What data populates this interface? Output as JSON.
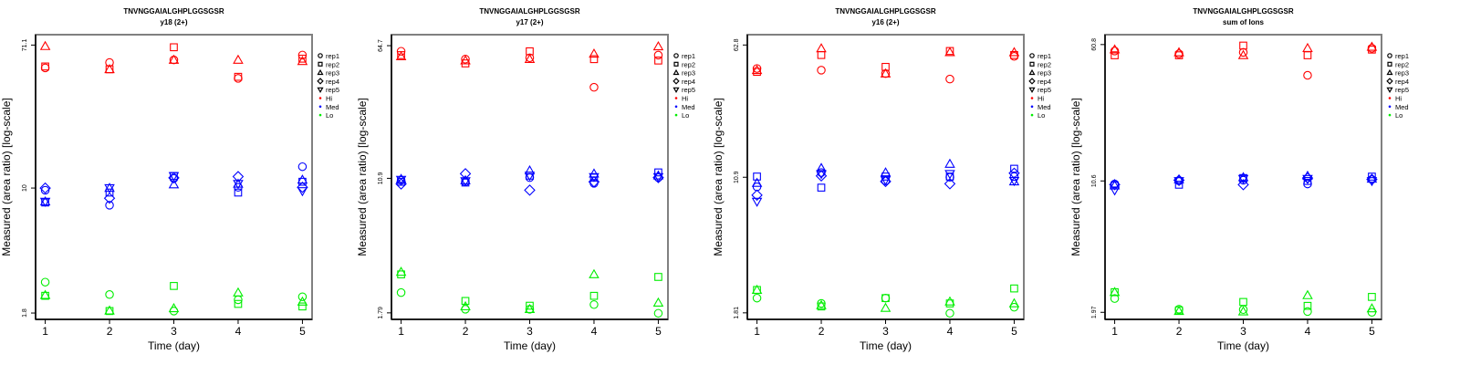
{
  "legend": {
    "shapes": [
      {
        "label": "rep1",
        "shape": "circle"
      },
      {
        "label": "rep2",
        "shape": "square"
      },
      {
        "label": "rep3",
        "shape": "triangle-up"
      },
      {
        "label": "rep4",
        "shape": "diamond"
      },
      {
        "label": "rep5",
        "shape": "triangle-down"
      }
    ],
    "groups": [
      {
        "label": "Hi",
        "color": "#ff0000"
      },
      {
        "label": "Med",
        "color": "#0000ff"
      },
      {
        "label": "Lo",
        "color": "#00ee00"
      }
    ],
    "placement": "right"
  },
  "chart_data": [
    {
      "type": "scatter",
      "title": "TNVNGGAIALGHPLGGSGSR",
      "subtitle": "y18 (2+)",
      "xlabel": "Time (day)",
      "ylabel": "Measured (area ratio) [log-scale]",
      "yscale": "log",
      "x_ticks": [
        "1",
        "2",
        "3",
        "4",
        "5"
      ],
      "y_ticks": [
        {
          "value": 71.1,
          "label": "71.1"
        },
        {
          "value": 10,
          "label": "10"
        },
        {
          "value": 1.8,
          "label": "1.8"
        }
      ],
      "ylim": [
        1.65,
        82
      ],
      "xlim": [
        0.85,
        5.15
      ],
      "series": [
        {
          "group": "Hi",
          "rep": "rep1",
          "x": [
            1,
            2,
            3,
            4,
            5
          ],
          "y": [
            52,
            56,
            58,
            45,
            62
          ]
        },
        {
          "group": "Hi",
          "rep": "rep2",
          "x": [
            1,
            2,
            3,
            4,
            5
          ],
          "y": [
            53,
            51,
            69,
            46,
            59
          ]
        },
        {
          "group": "Hi",
          "rep": "rep3",
          "x": [
            1,
            2,
            3,
            4,
            5
          ],
          "y": [
            70,
            51,
            58,
            58,
            57
          ]
        },
        {
          "group": "Med",
          "rep": "rep1",
          "x": [
            1,
            2,
            3,
            4,
            5
          ],
          "y": [
            9.7,
            7.9,
            11.4,
            10.1,
            13.4
          ]
        },
        {
          "group": "Med",
          "rep": "rep2",
          "x": [
            1,
            2,
            3,
            4,
            5
          ],
          "y": [
            8.2,
            9.4,
            11.8,
            9.4,
            10.9
          ]
        },
        {
          "group": "Med",
          "rep": "rep3",
          "x": [
            1,
            2,
            3,
            4,
            5
          ],
          "y": [
            8.3,
            10.0,
            10.5,
            10.6,
            11.2
          ]
        },
        {
          "group": "Med",
          "rep": "rep4",
          "x": [
            1,
            2,
            3,
            4,
            5
          ],
          "y": [
            10.0,
            8.7,
            11.5,
            11.7,
            10.1
          ]
        },
        {
          "group": "Med",
          "rep": "rep5",
          "x": [
            1,
            2,
            3,
            4,
            5
          ],
          "y": [
            8.3,
            10.0,
            11.8,
            10.6,
            9.6
          ]
        },
        {
          "group": "Lo",
          "rep": "rep1",
          "x": [
            1,
            2,
            3,
            4,
            5
          ],
          "y": [
            2.75,
            2.32,
            1.85,
            2.16,
            2.25
          ]
        },
        {
          "group": "Lo",
          "rep": "rep2",
          "x": [
            1,
            2,
            3,
            4,
            5
          ],
          "y": [
            2.28,
            1.85,
            2.61,
            2.04,
            1.97
          ]
        },
        {
          "group": "Lo",
          "rep": "rep3",
          "x": [
            1,
            2,
            3,
            4,
            5
          ],
          "y": [
            2.3,
            1.86,
            1.92,
            2.38,
            2.1
          ]
        }
      ]
    },
    {
      "type": "scatter",
      "title": "TNVNGGAIALGHPLGGSGSR",
      "subtitle": "y17 (2+)",
      "xlabel": "Time (day)",
      "ylabel": "Measured (area ratio) [log-scale]",
      "yscale": "log",
      "x_ticks": [
        "1",
        "2",
        "3",
        "4",
        "5"
      ],
      "y_ticks": [
        {
          "value": 64.7,
          "label": "64.7"
        },
        {
          "value": 10.9,
          "label": "10.9"
        },
        {
          "value": 1.79,
          "label": "1.79"
        }
      ],
      "ylim": [
        1.64,
        75
      ],
      "xlim": [
        0.85,
        5.15
      ],
      "series": [
        {
          "group": "Hi",
          "rep": "rep1",
          "x": [
            1,
            2,
            3,
            4,
            5
          ],
          "y": [
            60,
            54,
            55,
            37,
            57
          ]
        },
        {
          "group": "Hi",
          "rep": "rep2",
          "x": [
            1,
            2,
            3,
            4,
            5
          ],
          "y": [
            57,
            51,
            60,
            54,
            53
          ]
        },
        {
          "group": "Hi",
          "rep": "rep3",
          "x": [
            1,
            2,
            3,
            4,
            5
          ],
          "y": [
            56,
            53,
            54,
            58,
            64
          ]
        },
        {
          "group": "Med",
          "rep": "rep1",
          "x": [
            1,
            2,
            3,
            4,
            5
          ],
          "y": [
            10.6,
            10.4,
            11.0,
            10.2,
            11.0
          ]
        },
        {
          "group": "Med",
          "rep": "rep2",
          "x": [
            1,
            2,
            3,
            4,
            5
          ],
          "y": [
            10.4,
            10.3,
            11.3,
            11.0,
            11.8
          ]
        },
        {
          "group": "Med",
          "rep": "rep3",
          "x": [
            1,
            2,
            3,
            4,
            5
          ],
          "y": [
            10.8,
            10.6,
            12.1,
            11.6,
            11.3
          ]
        },
        {
          "group": "Med",
          "rep": "rep4",
          "x": [
            1,
            2,
            3,
            4,
            5
          ],
          "y": [
            10.1,
            11.6,
            9.3,
            10.4,
            11.0
          ]
        },
        {
          "group": "Med",
          "rep": "rep5",
          "x": [
            1,
            2,
            3,
            4,
            5
          ],
          "y": [
            10.7,
            10.5,
            11.3,
            11.1,
            11.1
          ]
        },
        {
          "group": "Lo",
          "rep": "rep1",
          "x": [
            1,
            2,
            3,
            4,
            5
          ],
          "y": [
            2.35,
            1.88,
            1.88,
            2.0,
            1.78
          ]
        },
        {
          "group": "Lo",
          "rep": "rep2",
          "x": [
            1,
            2,
            3,
            4,
            5
          ],
          "y": [
            3.0,
            2.1,
            1.97,
            2.25,
            2.9
          ]
        },
        {
          "group": "Lo",
          "rep": "rep3",
          "x": [
            1,
            2,
            3,
            4,
            5
          ],
          "y": [
            3.1,
            1.95,
            1.88,
            3.0,
            2.05
          ]
        }
      ]
    },
    {
      "type": "scatter",
      "title": "TNVNGGAIALGHPLGGSGSR",
      "subtitle": "y16 (2+)",
      "xlabel": "Time (day)",
      "ylabel": "Measured (area ratio) [log-scale]",
      "yscale": "log",
      "x_ticks": [
        "1",
        "2",
        "3",
        "4",
        "5"
      ],
      "y_ticks": [
        {
          "value": 62.8,
          "label": "62.8"
        },
        {
          "value": 10.9,
          "label": "10.9"
        },
        {
          "value": 1.81,
          "label": "1.81"
        }
      ],
      "ylim": [
        1.66,
        72
      ],
      "xlim": [
        0.85,
        5.15
      ],
      "series": [
        {
          "group": "Hi",
          "rep": "rep1",
          "x": [
            1,
            2,
            3,
            4,
            5
          ],
          "y": [
            46,
            45,
            43,
            40,
            54
          ]
        },
        {
          "group": "Hi",
          "rep": "rep2",
          "x": [
            1,
            2,
            3,
            4,
            5
          ],
          "y": [
            44,
            55,
            47,
            58,
            55
          ]
        },
        {
          "group": "Hi",
          "rep": "rep3",
          "x": [
            1,
            2,
            3,
            4,
            5
          ],
          "y": [
            45,
            60,
            43,
            57,
            57
          ]
        },
        {
          "group": "Med",
          "rep": "rep1",
          "x": [
            1,
            2,
            3,
            4,
            5
          ],
          "y": [
            9.6,
            11.6,
            10.4,
            10.9,
            11.0
          ]
        },
        {
          "group": "Med",
          "rep": "rep2",
          "x": [
            1,
            2,
            3,
            4,
            5
          ],
          "y": [
            11.0,
            9.5,
            11.0,
            11.0,
            12.2
          ]
        },
        {
          "group": "Med",
          "rep": "rep3",
          "x": [
            1,
            2,
            3,
            4,
            5
          ],
          "y": [
            10.1,
            12.3,
            11.6,
            13.0,
            10.3
          ]
        },
        {
          "group": "Med",
          "rep": "rep4",
          "x": [
            1,
            2,
            3,
            4,
            5
          ],
          "y": [
            8.6,
            11.1,
            10.3,
            10.0,
            11.5
          ]
        },
        {
          "group": "Med",
          "rep": "rep5",
          "x": [
            1,
            2,
            3,
            4,
            5
          ],
          "y": [
            7.9,
            11.4,
            10.5,
            11.4,
            10.4
          ]
        },
        {
          "group": "Lo",
          "rep": "rep1",
          "x": [
            1,
            2,
            3,
            4,
            5
          ],
          "y": [
            2.2,
            2.05,
            2.2,
            1.8,
            1.95
          ]
        },
        {
          "group": "Lo",
          "rep": "rep2",
          "x": [
            1,
            2,
            3,
            4,
            5
          ],
          "y": [
            2.45,
            1.97,
            2.2,
            2.05,
            2.5
          ]
        },
        {
          "group": "Lo",
          "rep": "rep3",
          "x": [
            1,
            2,
            3,
            4,
            5
          ],
          "y": [
            2.45,
            2.0,
            1.93,
            2.1,
            2.05
          ]
        }
      ]
    },
    {
      "type": "scatter",
      "title": "TNVNGGAIALGHPLGGSGSR",
      "subtitle": "sum of Ions",
      "xlabel": "Time (day)",
      "ylabel": "Measured (area ratio) [log-scale]",
      "yscale": "log",
      "x_ticks": [
        "1",
        "2",
        "3",
        "4",
        "5"
      ],
      "y_ticks": [
        {
          "value": 60.8,
          "label": "60.8"
        },
        {
          "value": 10.6,
          "label": "10.6"
        },
        {
          "value": 1.97,
          "label": "1.97"
        }
      ],
      "ylim": [
        1.8,
        69
      ],
      "xlim": [
        0.85,
        5.15
      ],
      "series": [
        {
          "group": "Hi",
          "rep": "rep1",
          "x": [
            1,
            2,
            3,
            4,
            5
          ],
          "y": [
            56,
            54,
            55,
            41,
            58
          ]
        },
        {
          "group": "Hi",
          "rep": "rep2",
          "x": [
            1,
            2,
            3,
            4,
            5
          ],
          "y": [
            53,
            53,
            60,
            53,
            57
          ]
        },
        {
          "group": "Hi",
          "rep": "rep3",
          "x": [
            1,
            2,
            3,
            4,
            5
          ],
          "y": [
            57,
            55,
            53,
            58,
            59
          ]
        },
        {
          "group": "Med",
          "rep": "rep1",
          "x": [
            1,
            2,
            3,
            4,
            5
          ],
          "y": [
            10.2,
            10.6,
            10.7,
            10.2,
            10.8
          ]
        },
        {
          "group": "Med",
          "rep": "rep2",
          "x": [
            1,
            2,
            3,
            4,
            5
          ],
          "y": [
            10.0,
            10.1,
            11.0,
            10.6,
            11.2
          ]
        },
        {
          "group": "Med",
          "rep": "rep3",
          "x": [
            1,
            2,
            3,
            4,
            5
          ],
          "y": [
            10.0,
            10.8,
            11.1,
            11.3,
            10.9
          ]
        },
        {
          "group": "Med",
          "rep": "rep4",
          "x": [
            1,
            2,
            3,
            4,
            5
          ],
          "y": [
            10.1,
            10.7,
            10.1,
            11.0,
            10.8
          ]
        },
        {
          "group": "Med",
          "rep": "rep5",
          "x": [
            1,
            2,
            3,
            4,
            5
          ],
          "y": [
            9.4,
            10.6,
            10.9,
            10.9,
            10.6
          ]
        },
        {
          "group": "Lo",
          "rep": "rep1",
          "x": [
            1,
            2,
            3,
            4,
            5
          ],
          "y": [
            2.35,
            2.05,
            2.04,
            1.99,
            1.97
          ]
        },
        {
          "group": "Lo",
          "rep": "rep2",
          "x": [
            1,
            2,
            3,
            4,
            5
          ],
          "y": [
            2.55,
            2.02,
            2.25,
            2.14,
            2.4
          ]
        },
        {
          "group": "Lo",
          "rep": "rep3",
          "x": [
            1,
            2,
            3,
            4,
            5
          ],
          "y": [
            2.55,
            2.0,
            1.99,
            2.45,
            2.07
          ]
        }
      ]
    }
  ]
}
